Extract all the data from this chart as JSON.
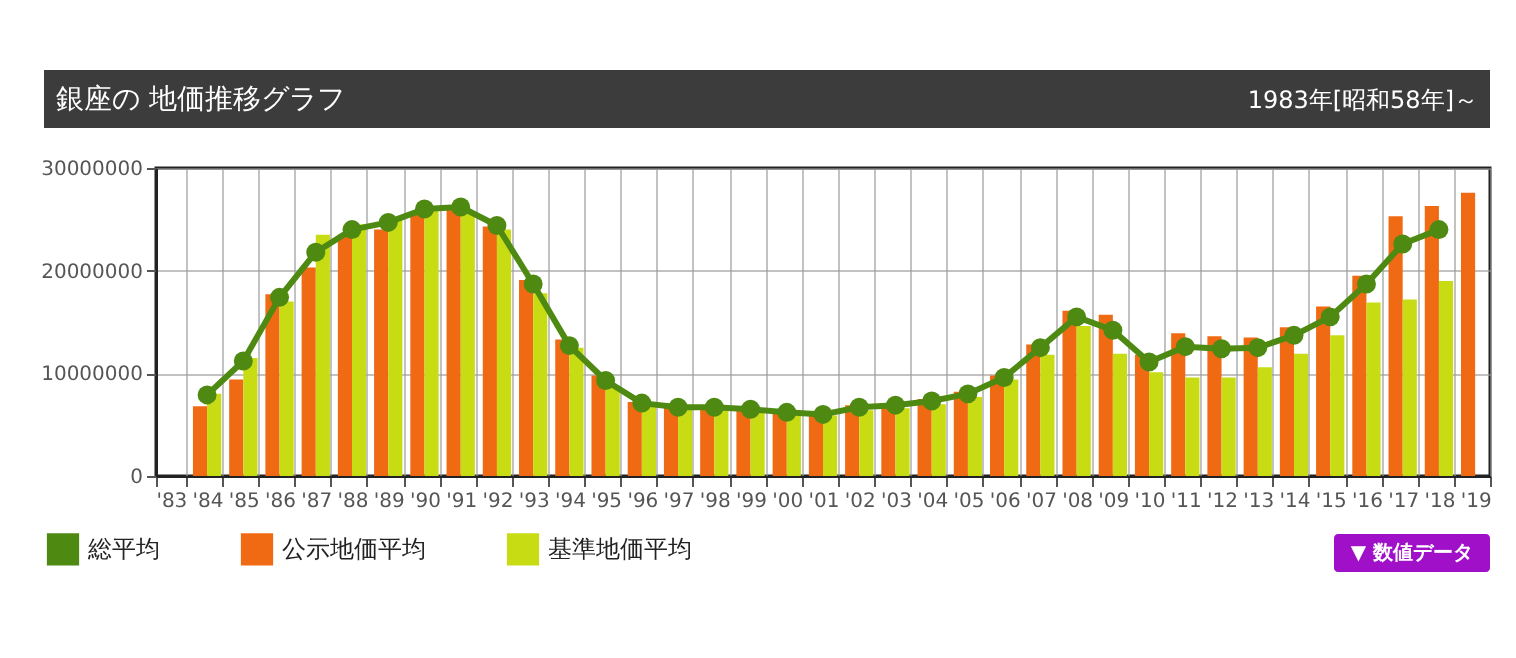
{
  "chart_data": {
    "type": "bar",
    "title": "銀座の 地価推移グラフ",
    "subtitle": "1983年[昭和58年]～",
    "categories": [
      "'83",
      "'84",
      "'85",
      "'86",
      "'87",
      "'88",
      "'89",
      "'90",
      "'91",
      "'92",
      "'93",
      "'94",
      "'95",
      "'96",
      "'97",
      "'98",
      "'99",
      "'00",
      "'01",
      "'02",
      "'03",
      "'04",
      "'05",
      "'06",
      "'07",
      "'08",
      "'09",
      "'10",
      "'11",
      "'12",
      "'13",
      "'14",
      "'15",
      "'16",
      "'17",
      "'18",
      "'19"
    ],
    "series": [
      {
        "name": "総平均",
        "type": "line",
        "color": "#4e8a12",
        "values": [
          null,
          7900000,
          11200000,
          17400000,
          21800000,
          24000000,
          24700000,
          26000000,
          26200000,
          24400000,
          18700000,
          12700000,
          9300000,
          7100000,
          6700000,
          6700000,
          6500000,
          6200000,
          6000000,
          6700000,
          6900000,
          7300000,
          8000000,
          9600000,
          12500000,
          15500000,
          14200000,
          11100000,
          12600000,
          12400000,
          12500000,
          13700000,
          15500000,
          18700000,
          22600000,
          24000000,
          null
        ]
      },
      {
        "name": "公示地価平均",
        "color": "#f06a14",
        "values": [
          null,
          6800000,
          9400000,
          17700000,
          20300000,
          23500000,
          24000000,
          25500000,
          26000000,
          24300000,
          19100000,
          13300000,
          9800000,
          7200000,
          6900000,
          6800000,
          6600000,
          6400000,
          6200000,
          6900000,
          7000000,
          7500000,
          8200000,
          9800000,
          12800000,
          16100000,
          15700000,
          11800000,
          13900000,
          13600000,
          13500000,
          14500000,
          16500000,
          19500000,
          25300000,
          26300000,
          27600000
        ]
      },
      {
        "name": "基準地価平均",
        "color": "#c8dc14",
        "values": [
          null,
          8000000,
          11500000,
          17000000,
          23500000,
          24500000,
          25000000,
          26300000,
          25800000,
          24000000,
          17800000,
          12500000,
          8800000,
          7000000,
          6600000,
          6500000,
          6300000,
          6100000,
          5900000,
          6400000,
          6600000,
          7000000,
          7700000,
          9400000,
          11800000,
          14600000,
          11900000,
          10100000,
          9600000,
          9600000,
          10600000,
          11900000,
          13700000,
          16900000,
          17200000,
          19000000,
          null
        ]
      }
    ],
    "ylim": [
      0,
      30000000
    ],
    "yticks": [
      0,
      10000000,
      20000000,
      30000000
    ],
    "grid": true,
    "legend": "bottom left",
    "marker": "circle",
    "annotations": [
      "▼ 数値データ"
    ]
  }
}
